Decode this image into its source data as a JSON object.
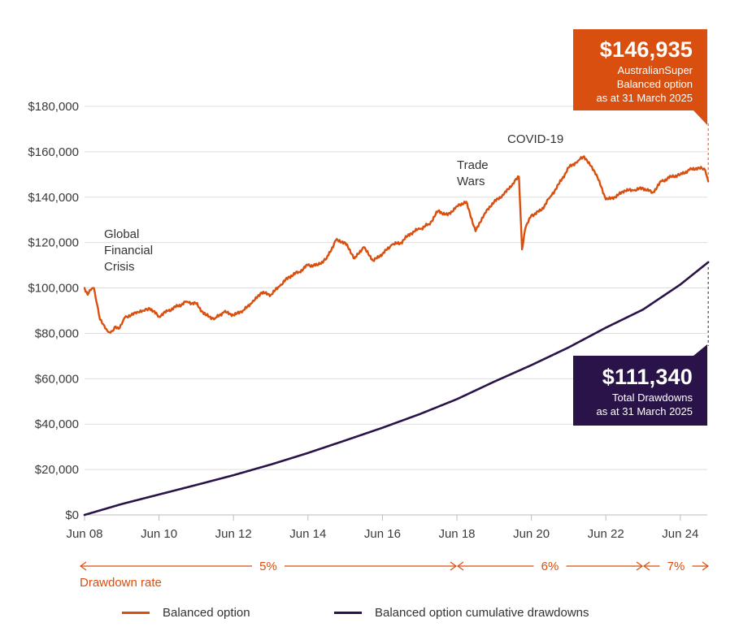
{
  "colors": {
    "balanced": "#d94f0f",
    "drawdowns": "#2a1348",
    "grid": "#dedede",
    "axis": "#bdbdbd"
  },
  "callouts": {
    "balance": {
      "value": "$146,935",
      "line1": "AustralianSuper",
      "line2": "Balanced option",
      "line3": "as at 31 March 2025"
    },
    "drawdowns": {
      "value": "$111,340",
      "line1": "Total Drawdowns",
      "line2": "as at 31 March 2025"
    }
  },
  "drawdown_rate": {
    "label": "Drawdown rate",
    "segments": [
      {
        "rate": "5%",
        "from": "2008-06",
        "to": "2018-06"
      },
      {
        "rate": "6%",
        "from": "2018-06",
        "to": "2023-06"
      },
      {
        "rate": "7%",
        "from": "2023-06",
        "to": "2025-03"
      }
    ]
  },
  "legend": {
    "balanced": "Balanced option",
    "drawdowns": "Balanced option cumulative drawdowns"
  },
  "chart_data": {
    "type": "line",
    "ylim": [
      0,
      180000
    ],
    "yticks": [
      0,
      20000,
      40000,
      60000,
      80000,
      100000,
      120000,
      140000,
      160000,
      180000
    ],
    "ytick_labels": [
      "$0",
      "$20,000",
      "$40,000",
      "$60,000",
      "$80,000",
      "$100,000",
      "$120,000",
      "$140,000",
      "$160,000",
      "$180,000"
    ],
    "xlim": [
      "2008-06",
      "2025-03"
    ],
    "xticks": [
      "2008-06",
      "2010-06",
      "2012-06",
      "2014-06",
      "2016-06",
      "2018-06",
      "2020-06",
      "2022-06",
      "2024-06"
    ],
    "xtick_labels": [
      "Jun 08",
      "Jun 10",
      "Jun 12",
      "Jun 14",
      "Jun 16",
      "Jun 18",
      "Jun 20",
      "Jun 22",
      "Jun 24"
    ],
    "grid": true,
    "annotations": [
      {
        "text": [
          "Global",
          "Financial",
          "Crisis"
        ],
        "date": "2009-03"
      },
      {
        "text": [
          "Trade",
          "Wars"
        ],
        "date": "2018-06"
      },
      {
        "text": [
          "COVID-19"
        ],
        "date": "2020-02"
      }
    ],
    "series": [
      {
        "name": "Balanced option",
        "color": "#d94f0f",
        "points": [
          [
            "2008-06",
            100000
          ],
          [
            "2008-07",
            97000
          ],
          [
            "2008-08",
            99000
          ],
          [
            "2008-09",
            100000
          ],
          [
            "2008-10",
            93000
          ],
          [
            "2008-11",
            86000
          ],
          [
            "2008-12",
            84000
          ],
          [
            "2009-01",
            82000
          ],
          [
            "2009-02",
            80500
          ],
          [
            "2009-03",
            81000
          ],
          [
            "2009-04",
            83000
          ],
          [
            "2009-05",
            82000
          ],
          [
            "2009-06",
            84000
          ],
          [
            "2009-07",
            87000
          ],
          [
            "2009-09",
            88000
          ],
          [
            "2009-11",
            89500
          ],
          [
            "2010-01",
            90000
          ],
          [
            "2010-03",
            91000
          ],
          [
            "2010-06",
            87500
          ],
          [
            "2010-09",
            90000
          ],
          [
            "2010-12",
            92000
          ],
          [
            "2011-03",
            94000
          ],
          [
            "2011-06",
            93000
          ],
          [
            "2011-09",
            88000
          ],
          [
            "2011-12",
            86500
          ],
          [
            "2012-03",
            89500
          ],
          [
            "2012-06",
            88000
          ],
          [
            "2012-09",
            90000
          ],
          [
            "2012-12",
            93500
          ],
          [
            "2013-03",
            98000
          ],
          [
            "2013-06",
            97000
          ],
          [
            "2013-09",
            101000
          ],
          [
            "2013-12",
            105000
          ],
          [
            "2014-03",
            107000
          ],
          [
            "2014-06",
            110000
          ],
          [
            "2014-09",
            110000
          ],
          [
            "2014-12",
            113000
          ],
          [
            "2015-03",
            121000
          ],
          [
            "2015-06",
            120000
          ],
          [
            "2015-09",
            113000
          ],
          [
            "2015-12",
            118000
          ],
          [
            "2016-03",
            112000
          ],
          [
            "2016-06",
            115000
          ],
          [
            "2016-09",
            119000
          ],
          [
            "2016-12",
            120000
          ],
          [
            "2017-03",
            124000
          ],
          [
            "2017-06",
            126000
          ],
          [
            "2017-09",
            128000
          ],
          [
            "2017-12",
            134000
          ],
          [
            "2018-03",
            132000
          ],
          [
            "2018-06",
            136000
          ],
          [
            "2018-09",
            138000
          ],
          [
            "2018-12",
            125000
          ],
          [
            "2019-03",
            133000
          ],
          [
            "2019-06",
            138000
          ],
          [
            "2019-09",
            141000
          ],
          [
            "2019-12",
            146000
          ],
          [
            "2020-02",
            149000
          ],
          [
            "2020-03",
            117000
          ],
          [
            "2020-04",
            126000
          ],
          [
            "2020-06",
            132000
          ],
          [
            "2020-09",
            134000
          ],
          [
            "2020-12",
            140000
          ],
          [
            "2021-03",
            146000
          ],
          [
            "2021-06",
            153000
          ],
          [
            "2021-09",
            156000
          ],
          [
            "2021-11",
            158000
          ],
          [
            "2021-12",
            156000
          ],
          [
            "2022-03",
            150000
          ],
          [
            "2022-06",
            139000
          ],
          [
            "2022-09",
            140000
          ],
          [
            "2022-12",
            143000
          ],
          [
            "2023-03",
            143000
          ],
          [
            "2023-06",
            144000
          ],
          [
            "2023-09",
            142000
          ],
          [
            "2023-12",
            147000
          ],
          [
            "2024-03",
            149000
          ],
          [
            "2024-06",
            150000
          ],
          [
            "2024-09",
            152000
          ],
          [
            "2024-12",
            153000
          ],
          [
            "2025-02",
            152000
          ],
          [
            "2025-03",
            146935
          ]
        ]
      },
      {
        "name": "Balanced option cumulative drawdowns",
        "color": "#2a1348",
        "points": [
          [
            "2008-06",
            0
          ],
          [
            "2009-06",
            4800
          ],
          [
            "2010-06",
            9000
          ],
          [
            "2011-06",
            13200
          ],
          [
            "2012-06",
            17500
          ],
          [
            "2013-06",
            22200
          ],
          [
            "2014-06",
            27300
          ],
          [
            "2015-06",
            32800
          ],
          [
            "2016-06",
            38400
          ],
          [
            "2017-06",
            44400
          ],
          [
            "2018-06",
            51000
          ],
          [
            "2019-06",
            58700
          ],
          [
            "2020-06",
            66000
          ],
          [
            "2021-06",
            73800
          ],
          [
            "2022-06",
            82500
          ],
          [
            "2023-06",
            90500
          ],
          [
            "2024-06",
            101500
          ],
          [
            "2025-03",
            111340
          ]
        ]
      }
    ]
  }
}
